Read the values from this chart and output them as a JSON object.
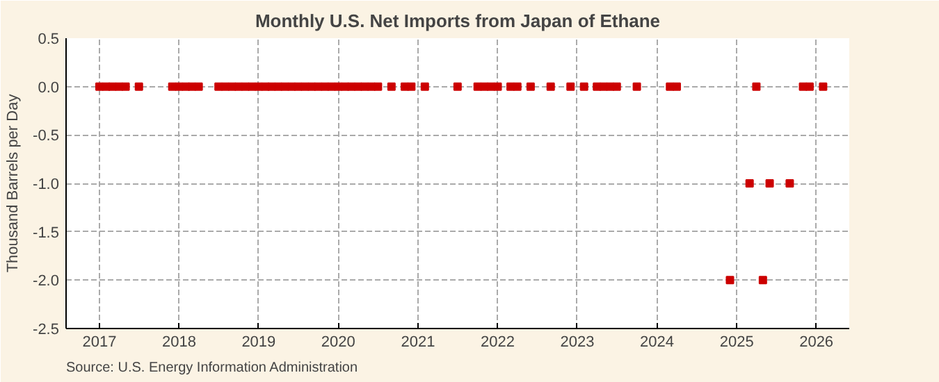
{
  "chart_data": {
    "type": "scatter",
    "title": "Monthly U.S. Net Imports from Japan of Ethane",
    "ylabel": "Thousand Barrels per Day",
    "annotations": [
      "Source: U.S. Energy Information Administration"
    ],
    "x": [
      "2017-01",
      "2017-02",
      "2017-03",
      "2017-04",
      "2017-05",
      "2017-07",
      "2017-12",
      "2018-01",
      "2018-02",
      "2018-03",
      "2018-04",
      "2018-07",
      "2018-08",
      "2018-09",
      "2018-10",
      "2018-11",
      "2018-12",
      "2019-01",
      "2019-02",
      "2019-03",
      "2019-04",
      "2019-05",
      "2019-06",
      "2019-07",
      "2019-08",
      "2019-09",
      "2019-10",
      "2019-11",
      "2019-12",
      "2020-01",
      "2020-02",
      "2020-03",
      "2020-04",
      "2020-05",
      "2020-06",
      "2020-07",
      "2020-09",
      "2020-11",
      "2020-12",
      "2021-02",
      "2021-07",
      "2021-10",
      "2021-11",
      "2021-12",
      "2022-01",
      "2022-03",
      "2022-04",
      "2022-06",
      "2022-09",
      "2022-12",
      "2023-02",
      "2023-04",
      "2023-05",
      "2023-06",
      "2023-07",
      "2023-10",
      "2024-03",
      "2024-04",
      "2024-12",
      "2025-03",
      "2025-04",
      "2025-05",
      "2025-06",
      "2025-09",
      "2025-11",
      "2025-12",
      "2026-02"
    ],
    "series": [
      {
        "color": "#cc0000",
        "values": [
          0,
          0,
          0,
          0,
          0,
          0,
          0,
          0,
          0,
          0,
          0,
          0,
          0,
          0,
          0,
          0,
          0,
          0,
          0,
          0,
          0,
          0,
          0,
          0,
          0,
          0,
          0,
          0,
          0,
          0,
          0,
          0,
          0,
          0,
          0,
          0,
          0,
          0,
          0,
          0,
          0,
          0,
          0,
          0,
          0,
          0,
          0,
          0,
          0,
          0,
          0,
          0,
          0,
          0,
          0,
          0,
          0,
          0,
          -2,
          -1,
          0,
          -2,
          -1,
          -1,
          0,
          0,
          0
        ]
      }
    ],
    "xlim": [
      "2016-08",
      "2026-06"
    ],
    "xticks": [
      {
        "value": "2017-01",
        "label": "2017"
      },
      {
        "value": "2018-01",
        "label": "2018"
      },
      {
        "value": "2019-01",
        "label": "2019"
      },
      {
        "value": "2020-01",
        "label": "2020"
      },
      {
        "value": "2021-01",
        "label": "2021"
      },
      {
        "value": "2022-01",
        "label": "2022"
      },
      {
        "value": "2023-01",
        "label": "2023"
      },
      {
        "value": "2024-01",
        "label": "2024"
      },
      {
        "value": "2025-01",
        "label": "2025"
      },
      {
        "value": "2026-01",
        "label": "2026"
      }
    ],
    "ylim": [
      -2.5,
      0.5
    ],
    "yticks": [
      {
        "value": -2.5,
        "label": "-2.5"
      },
      {
        "value": -2.0,
        "label": "-2.0"
      },
      {
        "value": -1.5,
        "label": "-1.5"
      },
      {
        "value": -1.0,
        "label": "-1.0"
      },
      {
        "value": -0.5,
        "label": "-0.5"
      },
      {
        "value": 0,
        "label": "0.0"
      },
      {
        "value": 0.5,
        "label": "0.5"
      }
    ],
    "grid": true,
    "marker": "square"
  }
}
